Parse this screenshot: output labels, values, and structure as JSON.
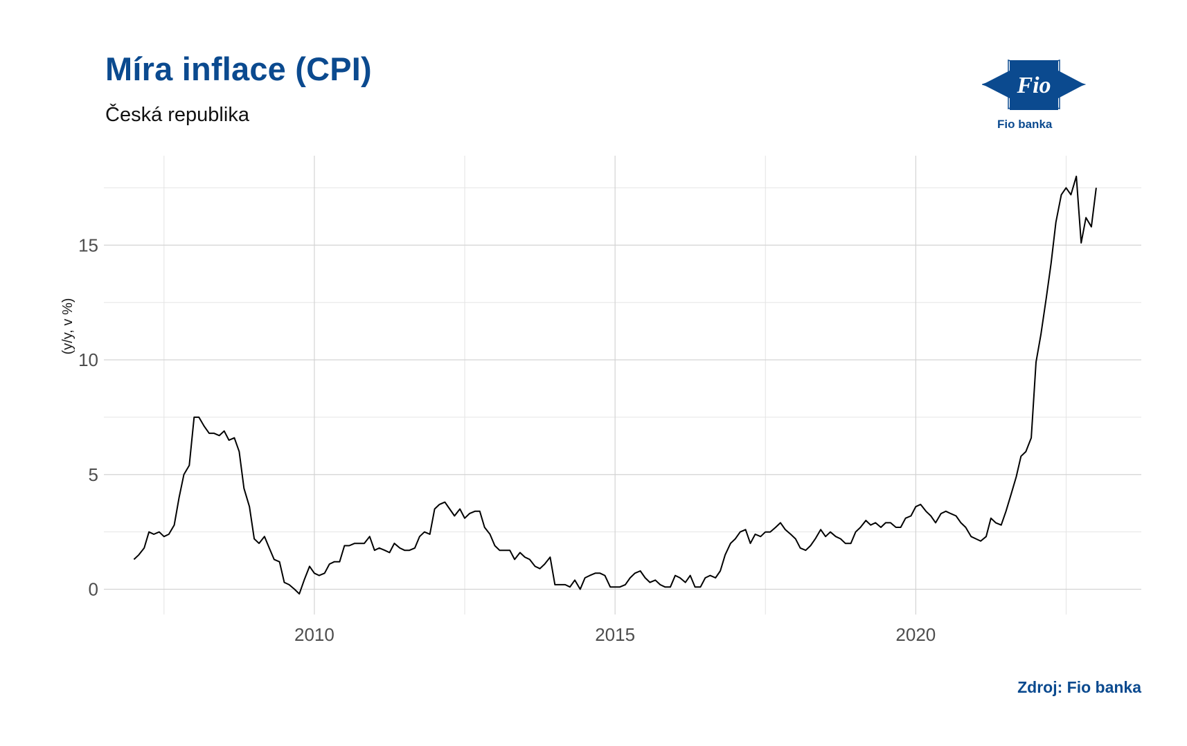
{
  "header": {
    "title": "Míra inflace (CPI)",
    "subtitle": "Česká republika"
  },
  "logo": {
    "mark_text": "Fio",
    "caption": "Fio banka",
    "color": "#0b4a8f"
  },
  "footer": {
    "source": "Zdroj: Fio banka"
  },
  "chart_data": {
    "type": "line",
    "title": "Míra inflace (CPI)",
    "subtitle": "Česká republika",
    "ylabel": "(y/y, v %)",
    "xlabel": "",
    "xlim": [
      2006.5,
      2023.75
    ],
    "ylim": [
      -1.1,
      18.9
    ],
    "x_ticks": [
      2010,
      2015,
      2020
    ],
    "y_ticks": [
      0,
      5,
      10,
      15
    ],
    "grid": true,
    "legend": "none",
    "line_color": "#000000",
    "series": [
      {
        "points": [
          [
            2007.0,
            1.3
          ],
          [
            2007.08,
            1.5
          ],
          [
            2007.17,
            1.8
          ],
          [
            2007.25,
            2.5
          ],
          [
            2007.33,
            2.4
          ],
          [
            2007.42,
            2.5
          ],
          [
            2007.5,
            2.3
          ],
          [
            2007.58,
            2.4
          ],
          [
            2007.67,
            2.8
          ],
          [
            2007.75,
            4.0
          ],
          [
            2007.83,
            5.0
          ],
          [
            2007.92,
            5.4
          ],
          [
            2008.0,
            7.5
          ],
          [
            2008.08,
            7.5
          ],
          [
            2008.17,
            7.1
          ],
          [
            2008.25,
            6.8
          ],
          [
            2008.33,
            6.8
          ],
          [
            2008.42,
            6.7
          ],
          [
            2008.5,
            6.9
          ],
          [
            2008.58,
            6.5
          ],
          [
            2008.67,
            6.6
          ],
          [
            2008.75,
            6.0
          ],
          [
            2008.83,
            4.4
          ],
          [
            2008.92,
            3.6
          ],
          [
            2009.0,
            2.2
          ],
          [
            2009.08,
            2.0
          ],
          [
            2009.17,
            2.3
          ],
          [
            2009.25,
            1.8
          ],
          [
            2009.33,
            1.3
          ],
          [
            2009.42,
            1.2
          ],
          [
            2009.5,
            0.3
          ],
          [
            2009.58,
            0.2
          ],
          [
            2009.67,
            0.0
          ],
          [
            2009.75,
            -0.2
          ],
          [
            2009.83,
            0.4
          ],
          [
            2009.92,
            1.0
          ],
          [
            2010.0,
            0.7
          ],
          [
            2010.08,
            0.6
          ],
          [
            2010.17,
            0.7
          ],
          [
            2010.25,
            1.1
          ],
          [
            2010.33,
            1.2
          ],
          [
            2010.42,
            1.2
          ],
          [
            2010.5,
            1.9
          ],
          [
            2010.58,
            1.9
          ],
          [
            2010.67,
            2.0
          ],
          [
            2010.75,
            2.0
          ],
          [
            2010.83,
            2.0
          ],
          [
            2010.92,
            2.3
          ],
          [
            2011.0,
            1.7
          ],
          [
            2011.08,
            1.8
          ],
          [
            2011.17,
            1.7
          ],
          [
            2011.25,
            1.6
          ],
          [
            2011.33,
            2.0
          ],
          [
            2011.42,
            1.8
          ],
          [
            2011.5,
            1.7
          ],
          [
            2011.58,
            1.7
          ],
          [
            2011.67,
            1.8
          ],
          [
            2011.75,
            2.3
          ],
          [
            2011.83,
            2.5
          ],
          [
            2011.92,
            2.4
          ],
          [
            2012.0,
            3.5
          ],
          [
            2012.08,
            3.7
          ],
          [
            2012.17,
            3.8
          ],
          [
            2012.25,
            3.5
          ],
          [
            2012.33,
            3.2
          ],
          [
            2012.42,
            3.5
          ],
          [
            2012.5,
            3.1
          ],
          [
            2012.58,
            3.3
          ],
          [
            2012.67,
            3.4
          ],
          [
            2012.75,
            3.4
          ],
          [
            2012.83,
            2.7
          ],
          [
            2012.92,
            2.4
          ],
          [
            2013.0,
            1.9
          ],
          [
            2013.08,
            1.7
          ],
          [
            2013.17,
            1.7
          ],
          [
            2013.25,
            1.7
          ],
          [
            2013.33,
            1.3
          ],
          [
            2013.42,
            1.6
          ],
          [
            2013.5,
            1.4
          ],
          [
            2013.58,
            1.3
          ],
          [
            2013.67,
            1.0
          ],
          [
            2013.75,
            0.9
          ],
          [
            2013.83,
            1.1
          ],
          [
            2013.92,
            1.4
          ],
          [
            2014.0,
            0.2
          ],
          [
            2014.08,
            0.2
          ],
          [
            2014.17,
            0.2
          ],
          [
            2014.25,
            0.1
          ],
          [
            2014.33,
            0.4
          ],
          [
            2014.42,
            0.0
          ],
          [
            2014.5,
            0.5
          ],
          [
            2014.58,
            0.6
          ],
          [
            2014.67,
            0.7
          ],
          [
            2014.75,
            0.7
          ],
          [
            2014.83,
            0.6
          ],
          [
            2014.92,
            0.1
          ],
          [
            2015.0,
            0.1
          ],
          [
            2015.08,
            0.1
          ],
          [
            2015.17,
            0.2
          ],
          [
            2015.25,
            0.5
          ],
          [
            2015.33,
            0.7
          ],
          [
            2015.42,
            0.8
          ],
          [
            2015.5,
            0.5
          ],
          [
            2015.58,
            0.3
          ],
          [
            2015.67,
            0.4
          ],
          [
            2015.75,
            0.2
          ],
          [
            2015.83,
            0.1
          ],
          [
            2015.92,
            0.1
          ],
          [
            2016.0,
            0.6
          ],
          [
            2016.08,
            0.5
          ],
          [
            2016.17,
            0.3
          ],
          [
            2016.25,
            0.6
          ],
          [
            2016.33,
            0.1
          ],
          [
            2016.42,
            0.1
          ],
          [
            2016.5,
            0.5
          ],
          [
            2016.58,
            0.6
          ],
          [
            2016.67,
            0.5
          ],
          [
            2016.75,
            0.8
          ],
          [
            2016.83,
            1.5
          ],
          [
            2016.92,
            2.0
          ],
          [
            2017.0,
            2.2
          ],
          [
            2017.08,
            2.5
          ],
          [
            2017.17,
            2.6
          ],
          [
            2017.25,
            2.0
          ],
          [
            2017.33,
            2.4
          ],
          [
            2017.42,
            2.3
          ],
          [
            2017.5,
            2.5
          ],
          [
            2017.58,
            2.5
          ],
          [
            2017.67,
            2.7
          ],
          [
            2017.75,
            2.9
          ],
          [
            2017.83,
            2.6
          ],
          [
            2017.92,
            2.4
          ],
          [
            2018.0,
            2.2
          ],
          [
            2018.08,
            1.8
          ],
          [
            2018.17,
            1.7
          ],
          [
            2018.25,
            1.9
          ],
          [
            2018.33,
            2.2
          ],
          [
            2018.42,
            2.6
          ],
          [
            2018.5,
            2.3
          ],
          [
            2018.58,
            2.5
          ],
          [
            2018.67,
            2.3
          ],
          [
            2018.75,
            2.2
          ],
          [
            2018.83,
            2.0
          ],
          [
            2018.92,
            2.0
          ],
          [
            2019.0,
            2.5
          ],
          [
            2019.08,
            2.7
          ],
          [
            2019.17,
            3.0
          ],
          [
            2019.25,
            2.8
          ],
          [
            2019.33,
            2.9
          ],
          [
            2019.42,
            2.7
          ],
          [
            2019.5,
            2.9
          ],
          [
            2019.58,
            2.9
          ],
          [
            2019.67,
            2.7
          ],
          [
            2019.75,
            2.7
          ],
          [
            2019.83,
            3.1
          ],
          [
            2019.92,
            3.2
          ],
          [
            2020.0,
            3.6
          ],
          [
            2020.08,
            3.7
          ],
          [
            2020.17,
            3.4
          ],
          [
            2020.25,
            3.2
          ],
          [
            2020.33,
            2.9
          ],
          [
            2020.42,
            3.3
          ],
          [
            2020.5,
            3.4
          ],
          [
            2020.58,
            3.3
          ],
          [
            2020.67,
            3.2
          ],
          [
            2020.75,
            2.9
          ],
          [
            2020.83,
            2.7
          ],
          [
            2020.92,
            2.3
          ],
          [
            2021.0,
            2.2
          ],
          [
            2021.08,
            2.1
          ],
          [
            2021.17,
            2.3
          ],
          [
            2021.25,
            3.1
          ],
          [
            2021.33,
            2.9
          ],
          [
            2021.42,
            2.8
          ],
          [
            2021.5,
            3.4
          ],
          [
            2021.58,
            4.1
          ],
          [
            2021.67,
            4.9
          ],
          [
            2021.75,
            5.8
          ],
          [
            2021.83,
            6.0
          ],
          [
            2021.92,
            6.6
          ],
          [
            2022.0,
            9.9
          ],
          [
            2022.08,
            11.1
          ],
          [
            2022.17,
            12.7
          ],
          [
            2022.25,
            14.2
          ],
          [
            2022.33,
            16.0
          ],
          [
            2022.42,
            17.2
          ],
          [
            2022.5,
            17.5
          ],
          [
            2022.58,
            17.2
          ],
          [
            2022.67,
            18.0
          ],
          [
            2022.75,
            15.1
          ],
          [
            2022.83,
            16.2
          ],
          [
            2022.92,
            15.8
          ],
          [
            2023.0,
            17.5
          ]
        ]
      }
    ]
  }
}
